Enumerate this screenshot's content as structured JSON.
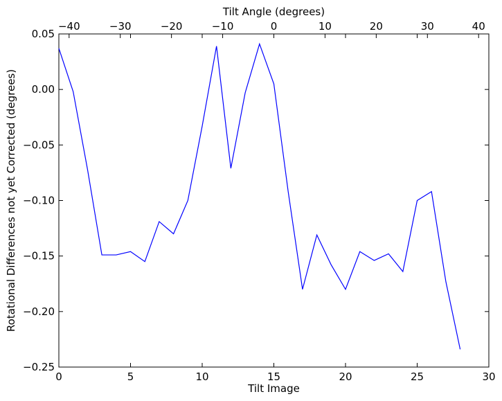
{
  "chart_data": {
    "type": "line",
    "title": "",
    "xlabel": "Tilt Image",
    "ylabel": "Rotational Differences not yet Corrected (degrees)",
    "x2label": "Tilt Angle (degrees)",
    "xlim": [
      0,
      30
    ],
    "ylim": [
      -0.25,
      0.05
    ],
    "x2lim": [
      -42,
      42
    ],
    "xticks": [
      0,
      5,
      10,
      15,
      20,
      25,
      30
    ],
    "xtick_labels": [
      "0",
      "5",
      "10",
      "15",
      "20",
      "25",
      "30"
    ],
    "yticks": [
      0.05,
      0.0,
      -0.05,
      -0.1,
      -0.15,
      -0.2,
      -0.25
    ],
    "ytick_labels": [
      "0.05",
      "0.00",
      "−0.05",
      "−0.10",
      "−0.15",
      "−0.20",
      "−0.25"
    ],
    "x2ticks": [
      -40,
      -30,
      -20,
      -10,
      0,
      10,
      20,
      30,
      40
    ],
    "x2tick_labels": [
      "−40",
      "−30",
      "−20",
      "−10",
      "0",
      "10",
      "20",
      "30",
      "40"
    ],
    "grid": false,
    "series": [
      {
        "color": "#0000ff",
        "x": [
          0,
          1,
          2,
          3,
          4,
          5,
          6,
          7,
          8,
          9,
          10,
          11,
          12,
          13,
          14,
          15,
          16,
          17,
          18,
          19,
          20,
          21,
          22,
          23,
          24,
          25,
          26,
          27,
          28
        ],
        "y": [
          0.037,
          -0.002,
          -0.072,
          -0.149,
          -0.149,
          -0.146,
          -0.155,
          -0.119,
          -0.13,
          -0.1,
          -0.033,
          0.039,
          -0.071,
          -0.003,
          0.041,
          0.005,
          -0.092,
          -0.18,
          -0.131,
          -0.158,
          -0.18,
          -0.146,
          -0.154,
          -0.148,
          -0.164,
          -0.1,
          -0.092,
          -0.173,
          -0.234
        ]
      }
    ]
  }
}
